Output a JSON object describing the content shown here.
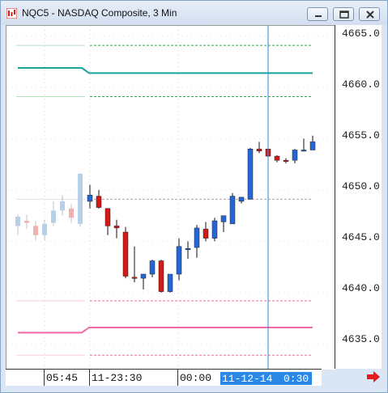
{
  "window": {
    "title": "NQC5 - NASDAQ Composite, 3 Min",
    "icons": [
      "app-chart-icon",
      "minimize-icon",
      "maximize-icon",
      "close-icon",
      "scroll-right-arrow-icon"
    ]
  },
  "colors": {
    "up": "#2566d6",
    "down": "#d41919",
    "prior_up": "#b8cfe8",
    "prior_down": "#f0b0b0",
    "green": "#2aa84a",
    "teal": "#1aa39a",
    "pink": "#f06aa6",
    "cursor": "#2a88e6"
  },
  "y_axis": {
    "ticks": [
      "4665.0",
      "4660.0",
      "4655.0",
      "4650.0",
      "4645.0",
      "4640.0",
      "4635.0"
    ]
  },
  "x_axis": {
    "labels": [
      "05:45",
      "11-23:30",
      "00:00"
    ],
    "cursor": {
      "date": "11-12-14",
      "time": "0:30"
    }
  },
  "chart_data": {
    "type": "candlestick",
    "ylim": [
      4632.5,
      4666
    ],
    "yticks": [
      4665,
      4660,
      4655,
      4650,
      4645,
      4640,
      4635
    ],
    "x_labels": [
      "05:45",
      "11-23:30",
      "00:00"
    ],
    "cursor_label": "11-12-14 0:30",
    "prior_session_candles": [
      {
        "o": 4646.5,
        "h": 4647.6,
        "l": 4645.6,
        "c": 4647.4
      },
      {
        "o": 4647.0,
        "h": 4647.6,
        "l": 4646.2,
        "c": 4646.8
      },
      {
        "o": 4646.5,
        "h": 4647.0,
        "l": 4645.1,
        "c": 4645.6
      },
      {
        "o": 4645.6,
        "h": 4647.1,
        "l": 4645.1,
        "c": 4646.7
      },
      {
        "o": 4646.8,
        "h": 4648.9,
        "l": 4646.5,
        "c": 4648.0
      },
      {
        "o": 4648.0,
        "h": 4649.5,
        "l": 4647.5,
        "c": 4648.9
      },
      {
        "o": 4648.2,
        "h": 4648.6,
        "l": 4646.8,
        "c": 4647.3
      },
      {
        "o": 4646.7,
        "h": 4651.6,
        "l": 4646.4,
        "c": 4651.6
      }
    ],
    "candles": [
      {
        "o": 4648.9,
        "h": 4650.5,
        "l": 4648.2,
        "c": 4649.5
      },
      {
        "o": 4649.4,
        "h": 4650.0,
        "l": 4648.2,
        "c": 4648.3
      },
      {
        "o": 4648.2,
        "h": 4648.2,
        "l": 4645.6,
        "c": 4646.5
      },
      {
        "o": 4646.5,
        "h": 4647.1,
        "l": 4645.3,
        "c": 4646.3
      },
      {
        "o": 4645.9,
        "h": 4646.4,
        "l": 4641.4,
        "c": 4641.6
      },
      {
        "o": 4641.5,
        "h": 4644.5,
        "l": 4641.0,
        "c": 4641.4
      },
      {
        "o": 4641.4,
        "h": 4641.8,
        "l": 4640.3,
        "c": 4641.8
      },
      {
        "o": 4641.8,
        "h": 4643.2,
        "l": 4641.5,
        "c": 4643.1
      },
      {
        "o": 4643.1,
        "h": 4643.2,
        "l": 4640.0,
        "c": 4640.1
      },
      {
        "o": 4640.1,
        "h": 4641.8,
        "l": 4640.0,
        "c": 4641.8
      },
      {
        "o": 4641.8,
        "h": 4645.3,
        "l": 4641.2,
        "c": 4644.5
      },
      {
        "o": 4644.3,
        "h": 4645.0,
        "l": 4643.3,
        "c": 4644.3
      },
      {
        "o": 4644.4,
        "h": 4646.6,
        "l": 4643.4,
        "c": 4646.3
      },
      {
        "o": 4646.2,
        "h": 4646.9,
        "l": 4645.0,
        "c": 4645.3
      },
      {
        "o": 4645.3,
        "h": 4647.3,
        "l": 4645.0,
        "c": 4647.0
      },
      {
        "o": 4646.9,
        "h": 4647.5,
        "l": 4645.9,
        "c": 4647.5
      },
      {
        "o": 4646.7,
        "h": 4649.7,
        "l": 4646.8,
        "c": 4649.4
      },
      {
        "o": 4648.9,
        "h": 4649.3,
        "l": 4648.7,
        "c": 4649.3
      },
      {
        "o": 4649.1,
        "h": 4654.1,
        "l": 4649.1,
        "c": 4654.0
      },
      {
        "o": 4654.0,
        "h": 4654.7,
        "l": 4653.6,
        "c": 4653.8
      },
      {
        "o": 4654.0,
        "h": 4654.1,
        "l": 4652.7,
        "c": 4653.3
      },
      {
        "o": 4653.3,
        "h": 4653.4,
        "l": 4652.7,
        "c": 4652.9
      },
      {
        "o": 4652.9,
        "h": 4653.1,
        "l": 4652.6,
        "c": 4652.8
      },
      {
        "o": 4652.9,
        "h": 4654.0,
        "l": 4652.6,
        "c": 4653.9
      },
      {
        "o": 4653.8,
        "h": 4655.0,
        "l": 4653.8,
        "c": 4653.9
      },
      {
        "o": 4653.9,
        "h": 4655.3,
        "l": 4653.9,
        "c": 4654.7
      }
    ],
    "levels": [
      {
        "value": 4664.1,
        "color": "green",
        "style": "dashed"
      },
      {
        "value": 4659.1,
        "color": "green",
        "style": "dashed"
      },
      {
        "value": 4649.1,
        "color": "gray",
        "style": "dashed"
      },
      {
        "value": 4639.2,
        "color": "pink",
        "style": "dashed"
      },
      {
        "value": 4633.9,
        "color": "pink",
        "style": "dashed"
      }
    ],
    "pivot_lines": [
      {
        "prior": 4661.9,
        "current": 4661.4,
        "color": "teal"
      },
      {
        "prior": 4636.1,
        "current": 4636.6,
        "color": "pink"
      }
    ],
    "grid": true
  }
}
